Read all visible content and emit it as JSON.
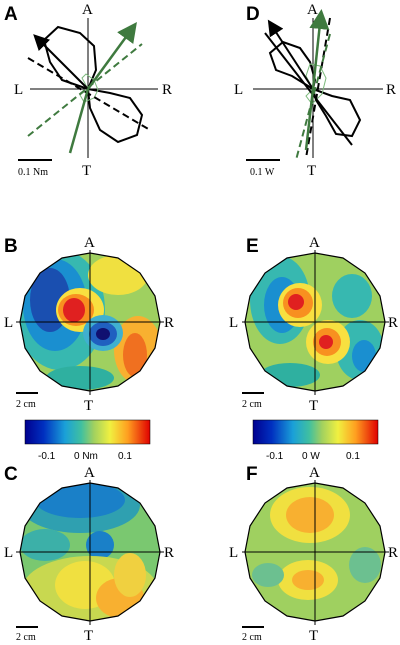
{
  "panels": {
    "A": {
      "letter": "A",
      "scale": "0.1 Nm"
    },
    "B": {
      "letter": "B",
      "scale": "2 cm"
    },
    "C": {
      "letter": "C",
      "scale": "2 cm"
    },
    "D": {
      "letter": "D",
      "scale": "0.1 W"
    },
    "E": {
      "letter": "E",
      "scale": "2 cm"
    },
    "F": {
      "letter": "F",
      "scale": "2 cm"
    }
  },
  "axis_labels": {
    "anterior": "A",
    "left": "L",
    "right": "R",
    "tail": "T"
  },
  "colorbars": [
    {
      "ticks": [
        "-0.1",
        "0 Nm",
        "0.1"
      ]
    },
    {
      "ticks": [
        "-0.1",
        "0 W",
        "0.1"
      ]
    }
  ],
  "colors": {
    "dark_green": "#3f7a3f",
    "light_green": "#7dba7d"
  }
}
